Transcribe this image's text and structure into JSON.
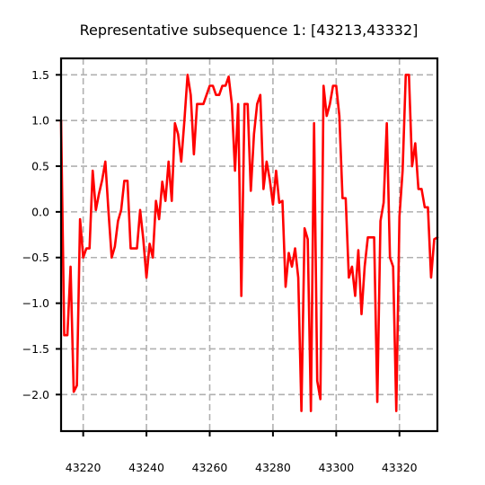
{
  "chart_data": {
    "type": "line",
    "title": "Representative subsequence 1: [43213,43332]",
    "xlabel": "",
    "ylabel": "",
    "xlim": [
      43213,
      43332
    ],
    "ylim": [
      -2.4,
      1.68
    ],
    "xticks": [
      43220,
      43240,
      43260,
      43280,
      43300,
      43320
    ],
    "yticks": [
      1.5,
      1.0,
      0.5,
      0.0,
      -0.5,
      -1.0,
      -1.5,
      -2.0
    ],
    "ytick_labels": [
      "1.5",
      "1.0",
      "0.5",
      "0.0",
      "−0.5",
      "−1.0",
      "−1.5",
      "−2.0"
    ],
    "grid": true,
    "color": "#ff0000",
    "series": [
      {
        "x": [
          43213,
          43214,
          43215,
          43216,
          43217,
          43218,
          43219,
          43220,
          43221,
          43222,
          43223,
          43224,
          43225,
          43226,
          43227,
          43228,
          43229,
          43230,
          43231,
          43232,
          43233,
          43234,
          43235,
          43236,
          43237,
          43238,
          43239,
          43240,
          43241,
          43242,
          43243,
          43244,
          43245,
          43246,
          43247,
          43248,
          43249,
          43250,
          43251,
          43252,
          43253,
          43254,
          43255,
          43256,
          43257,
          43258,
          43259,
          43260,
          43261,
          43262,
          43263,
          43264,
          43265,
          43266,
          43267,
          43268,
          43269,
          43270,
          43271,
          43272,
          43273,
          43274,
          43275,
          43276,
          43277,
          43278,
          43279,
          43280,
          43281,
          43282,
          43283,
          43284,
          43285,
          43286,
          43287,
          43288,
          43289,
          43290,
          43291,
          43292,
          43293,
          43294,
          43295,
          43296,
          43297,
          43298,
          43299,
          43300,
          43301,
          43302,
          43303,
          43304,
          43305,
          43306,
          43307,
          43308,
          43309,
          43310,
          43311,
          43312,
          43313,
          43314,
          43315,
          43316,
          43317,
          43318,
          43319,
          43320,
          43321,
          43322,
          43323,
          43324,
          43325,
          43326,
          43327,
          43328,
          43329,
          43330,
          43331,
          43332
        ],
        "y": [
          1.0,
          -1.35,
          -1.35,
          -0.6,
          -1.97,
          -1.9,
          -0.08,
          -0.5,
          -0.4,
          -0.4,
          0.45,
          0.02,
          0.2,
          0.35,
          0.55,
          0.0,
          -0.5,
          -0.38,
          -0.1,
          0.02,
          0.34,
          0.34,
          -0.4,
          -0.4,
          -0.4,
          0.02,
          -0.3,
          -0.72,
          -0.35,
          -0.5,
          0.12,
          -0.08,
          0.33,
          0.12,
          0.55,
          0.12,
          0.97,
          0.85,
          0.55,
          1.0,
          1.5,
          1.28,
          0.63,
          1.18,
          1.18,
          1.18,
          1.28,
          1.38,
          1.38,
          1.28,
          1.28,
          1.38,
          1.38,
          1.48,
          1.18,
          0.45,
          1.18,
          -0.92,
          1.18,
          1.18,
          0.23,
          0.85,
          1.18,
          1.28,
          0.25,
          0.55,
          0.35,
          0.08,
          0.45,
          0.1,
          0.12,
          -0.82,
          -0.45,
          -0.6,
          -0.4,
          -0.72,
          -2.18,
          -0.18,
          -0.3,
          -2.18,
          0.97,
          -1.85,
          -2.05,
          1.38,
          1.05,
          1.18,
          1.38,
          1.38,
          1.05,
          0.15,
          0.15,
          -0.72,
          -0.6,
          -0.92,
          -0.42,
          -1.12,
          -0.6,
          -0.28,
          -0.28,
          -0.28,
          -2.08,
          -0.1,
          0.1,
          0.97,
          -0.5,
          -0.6,
          -2.18,
          -0.05,
          0.45,
          1.5,
          1.5,
          0.5,
          0.75,
          0.25,
          0.25,
          0.05,
          0.05,
          -0.72,
          -0.3,
          -0.28
        ]
      }
    ]
  }
}
